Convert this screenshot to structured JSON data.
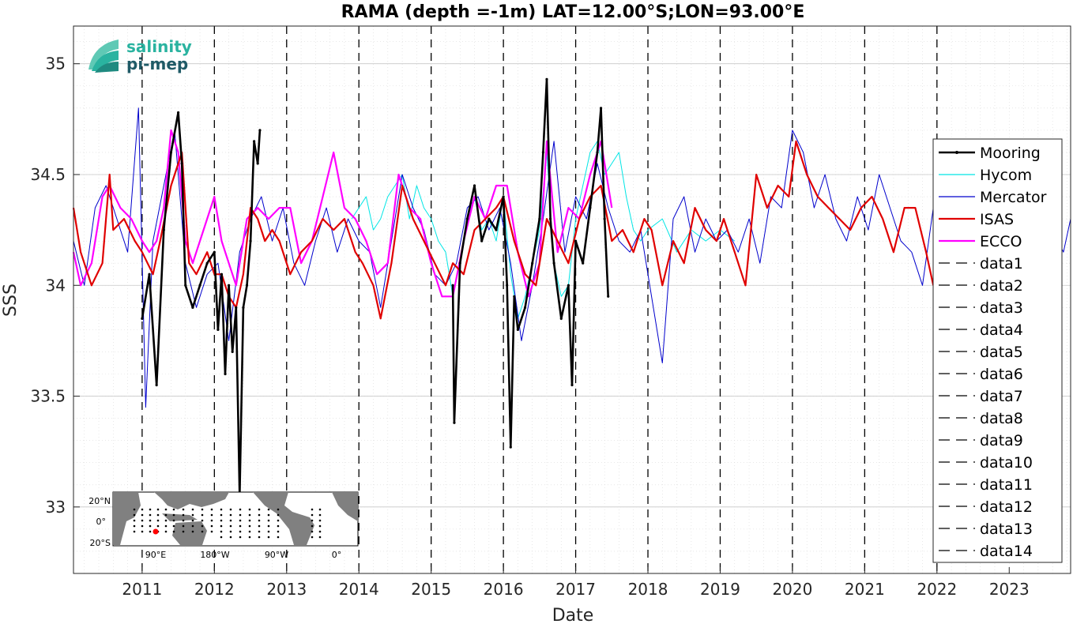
{
  "chart_data": {
    "type": "line",
    "title": "RAMA (depth =-1m) LAT=12.00°S;LON=93.00°E",
    "xlabel": "Date",
    "ylabel": "SSS",
    "xlim": [
      2010.05,
      2023.85
    ],
    "ylim": [
      32.7,
      35.17
    ],
    "yticks": [
      33,
      33.5,
      34,
      34.5,
      35
    ],
    "xticks": [
      2011,
      2012,
      2013,
      2014,
      2015,
      2016,
      2017,
      2018,
      2019,
      2020,
      2021,
      2022,
      2023
    ],
    "grid": true,
    "legend_position": "right",
    "year_lines": [
      2011,
      2012,
      2013,
      2014,
      2015,
      2016,
      2017,
      2018,
      2019,
      2020,
      2021,
      2022
    ],
    "series": [
      {
        "name": "Mooring",
        "color": "#000000",
        "style": "solid-dots",
        "segments": [
          [
            [
              2011.0,
              33.85
            ],
            [
              2011.1,
              34.05
            ],
            [
              2011.2,
              33.55
            ],
            [
              2011.3,
              34.25
            ],
            [
              2011.4,
              34.6
            ],
            [
              2011.5,
              34.78
            ],
            [
              2011.55,
              34.55
            ],
            [
              2011.6,
              34.0
            ],
            [
              2011.7,
              33.9
            ],
            [
              2011.8,
              34.0
            ],
            [
              2011.9,
              34.1
            ],
            [
              2012.0,
              34.15
            ],
            [
              2012.05,
              33.8
            ],
            [
              2012.1,
              34.05
            ],
            [
              2012.15,
              33.6
            ],
            [
              2012.2,
              34.0
            ],
            [
              2012.25,
              33.7
            ],
            [
              2012.3,
              33.9
            ],
            [
              2012.35,
              33.05
            ],
            [
              2012.4,
              33.9
            ],
            [
              2012.45,
              34.0
            ],
            [
              2012.5,
              34.2
            ],
            [
              2012.55,
              34.65
            ],
            [
              2012.6,
              34.55
            ],
            [
              2012.63,
              34.7
            ]
          ],
          [
            [
              2015.3,
              34.0
            ],
            [
              2015.32,
              33.38
            ],
            [
              2015.4,
              34.1
            ],
            [
              2015.5,
              34.3
            ],
            [
              2015.6,
              34.45
            ],
            [
              2015.7,
              34.2
            ],
            [
              2015.8,
              34.3
            ],
            [
              2015.9,
              34.25
            ],
            [
              2016.0,
              34.4
            ],
            [
              2016.05,
              34.0
            ],
            [
              2016.1,
              33.27
            ],
            [
              2016.15,
              33.95
            ],
            [
              2016.2,
              33.8
            ],
            [
              2016.3,
              33.9
            ],
            [
              2016.4,
              34.1
            ],
            [
              2016.5,
              34.3
            ],
            [
              2016.55,
              34.6
            ],
            [
              2016.6,
              34.93
            ],
            [
              2016.65,
              34.3
            ],
            [
              2016.7,
              34.1
            ],
            [
              2016.8,
              33.85
            ],
            [
              2016.9,
              34.0
            ],
            [
              2016.95,
              33.55
            ],
            [
              2017.0,
              34.2
            ],
            [
              2017.1,
              34.1
            ],
            [
              2017.2,
              34.35
            ],
            [
              2017.3,
              34.6
            ],
            [
              2017.35,
              34.8
            ],
            [
              2017.4,
              34.3
            ],
            [
              2017.45,
              33.95
            ]
          ]
        ]
      },
      {
        "name": "Hycom",
        "color": "#00e5e5",
        "style": "thin",
        "x": [
          2013.9,
          2014.0,
          2014.1,
          2014.2,
          2014.3,
          2014.4,
          2014.5,
          2014.6,
          2014.7,
          2014.8,
          2014.9,
          2015.0,
          2015.1,
          2015.2,
          2015.3,
          2015.4,
          2015.5,
          2015.6,
          2015.7,
          2015.8,
          2015.9,
          2016.0,
          2016.1,
          2016.2,
          2016.3,
          2016.4,
          2016.5,
          2016.6,
          2016.7,
          2016.8,
          2016.9,
          2017.0,
          2017.1,
          2017.2,
          2017.3,
          2017.4,
          2017.5,
          2017.6,
          2017.7,
          2017.8,
          2017.9,
          2018.0,
          2018.2,
          2018.4,
          2018.6,
          2018.8,
          2019.0,
          2019.2
        ],
        "y": [
          34.3,
          34.35,
          34.4,
          34.25,
          34.3,
          34.4,
          34.45,
          34.5,
          34.3,
          34.45,
          34.35,
          34.3,
          34.2,
          34.15,
          33.95,
          34.1,
          34.3,
          34.4,
          34.25,
          34.3,
          34.2,
          34.4,
          34.05,
          33.85,
          33.95,
          34.1,
          34.25,
          34.6,
          34.1,
          33.95,
          34.0,
          34.3,
          34.45,
          34.6,
          34.65,
          34.5,
          34.55,
          34.6,
          34.4,
          34.25,
          34.2,
          34.25,
          34.3,
          34.15,
          34.25,
          34.2,
          34.25,
          34.2
        ]
      },
      {
        "name": "Mercator",
        "color": "#0000cc",
        "style": "thin",
        "x": [
          2010.05,
          2010.2,
          2010.35,
          2010.5,
          2010.65,
          2010.8,
          2010.95,
          2011.05,
          2011.15,
          2011.3,
          2011.45,
          2011.6,
          2011.75,
          2011.9,
          2012.05,
          2012.2,
          2012.35,
          2012.5,
          2012.65,
          2012.8,
          2012.95,
          2013.1,
          2013.25,
          2013.4,
          2013.55,
          2013.7,
          2013.85,
          2014.0,
          2014.15,
          2014.3,
          2014.45,
          2014.6,
          2014.75,
          2014.9,
          2015.05,
          2015.2,
          2015.35,
          2015.5,
          2015.65,
          2015.8,
          2015.95,
          2016.1,
          2016.25,
          2016.4,
          2016.55,
          2016.7,
          2016.85,
          2017.0,
          2017.15,
          2017.3,
          2017.45,
          2017.6,
          2017.75,
          2017.9,
          2018.05,
          2018.2,
          2018.35,
          2018.5,
          2018.65,
          2018.8,
          2018.95,
          2019.1,
          2019.25,
          2019.4,
          2019.55,
          2019.7,
          2019.85,
          2020.0,
          2020.15,
          2020.3,
          2020.45,
          2020.6,
          2020.75,
          2020.9,
          2021.05,
          2021.2,
          2021.35,
          2021.5,
          2021.65,
          2021.8,
          2021.95,
          2022.1,
          2022.25,
          2022.4,
          2022.55,
          2022.7,
          2022.85,
          2023.0,
          2023.15,
          2023.3,
          2023.45,
          2023.6,
          2023.75,
          2023.85
        ],
        "y": [
          34.2,
          34.0,
          34.35,
          34.45,
          34.3,
          34.15,
          34.8,
          33.45,
          34.2,
          34.45,
          34.7,
          34.1,
          33.9,
          34.05,
          34.1,
          33.75,
          34.15,
          34.3,
          34.4,
          34.2,
          34.35,
          34.1,
          34.0,
          34.2,
          34.35,
          34.15,
          34.3,
          34.2,
          34.15,
          33.9,
          34.2,
          34.5,
          34.35,
          34.25,
          34.05,
          34.0,
          34.1,
          34.35,
          34.4,
          34.25,
          34.35,
          34.1,
          33.75,
          34.0,
          34.3,
          34.65,
          34.15,
          34.4,
          34.3,
          34.55,
          34.35,
          34.2,
          34.15,
          34.25,
          33.95,
          33.65,
          34.3,
          34.4,
          34.15,
          34.3,
          34.2,
          34.25,
          34.15,
          34.3,
          34.1,
          34.4,
          34.35,
          34.7,
          34.6,
          34.35,
          34.5,
          34.3,
          34.2,
          34.4,
          34.25,
          34.5,
          34.35,
          34.2,
          34.15,
          34.0,
          34.35,
          34.25,
          34.1,
          34.05,
          33.9,
          34.1,
          34.2,
          34.3,
          34.15,
          34.45,
          34.3,
          34.25,
          34.15,
          34.3
        ]
      },
      {
        "name": "ISAS",
        "color": "#e00000",
        "style": "thick",
        "x": [
          2010.05,
          2010.15,
          2010.3,
          2010.45,
          2010.55,
          2010.6,
          2010.75,
          2010.9,
          2011.0,
          2011.15,
          2011.25,
          2011.4,
          2011.55,
          2011.65,
          2011.75,
          2011.9,
          2012.0,
          2012.1,
          2012.2,
          2012.3,
          2012.4,
          2012.5,
          2012.6,
          2012.7,
          2012.8,
          2012.9,
          2013.05,
          2013.2,
          2013.35,
          2013.5,
          2013.65,
          2013.8,
          2013.95,
          2014.05,
          2014.2,
          2014.3,
          2014.45,
          2014.6,
          2014.75,
          2014.9,
          2015.05,
          2015.2,
          2015.3,
          2015.45,
          2015.6,
          2015.75,
          2015.9,
          2016.0,
          2016.15,
          2016.3,
          2016.45,
          2016.6,
          2016.75,
          2016.9,
          2017.05,
          2017.2,
          2017.35,
          2017.5,
          2017.65,
          2017.8,
          2017.95,
          2018.05,
          2018.2,
          2018.35,
          2018.5,
          2018.65,
          2018.8,
          2018.95,
          2019.05,
          2019.2,
          2019.35,
          2019.5,
          2019.65,
          2019.8,
          2019.95,
          2020.05,
          2020.2,
          2020.35,
          2020.5,
          2020.65,
          2020.8,
          2020.95,
          2021.1,
          2021.25,
          2021.4,
          2021.55,
          2021.7,
          2021.85,
          2021.95
        ],
        "y": [
          34.35,
          34.15,
          34.0,
          34.1,
          34.5,
          34.25,
          34.3,
          34.2,
          34.15,
          34.05,
          34.2,
          34.45,
          34.6,
          34.1,
          34.05,
          34.15,
          34.05,
          34.05,
          33.95,
          33.9,
          34.05,
          34.35,
          34.3,
          34.2,
          34.25,
          34.2,
          34.05,
          34.15,
          34.2,
          34.3,
          34.25,
          34.3,
          34.15,
          34.1,
          34.0,
          33.85,
          34.1,
          34.45,
          34.3,
          34.2,
          34.1,
          34.0,
          34.1,
          34.05,
          34.25,
          34.3,
          34.35,
          34.4,
          34.2,
          34.05,
          34.0,
          34.3,
          34.2,
          34.1,
          34.3,
          34.4,
          34.45,
          34.2,
          34.25,
          34.15,
          34.3,
          34.25,
          34.0,
          34.2,
          34.1,
          34.35,
          34.25,
          34.2,
          34.3,
          34.15,
          34.0,
          34.5,
          34.35,
          34.45,
          34.4,
          34.65,
          34.5,
          34.4,
          34.35,
          34.3,
          34.25,
          34.35,
          34.4,
          34.3,
          34.15,
          34.35,
          34.35,
          34.15,
          34.0
        ]
      },
      {
        "name": "ECCO",
        "color": "#ff00ff",
        "style": "thick",
        "x": [
          2010.05,
          2010.15,
          2010.3,
          2010.45,
          2010.55,
          2010.7,
          2010.85,
          2011.0,
          2011.1,
          2011.2,
          2011.3,
          2011.4,
          2011.5,
          2011.6,
          2011.7,
          2011.85,
          2012.0,
          2012.1,
          2012.2,
          2012.3,
          2012.45,
          2012.6,
          2012.75,
          2012.9,
          2013.05,
          2013.2,
          2013.35,
          2013.5,
          2013.65,
          2013.8,
          2013.95,
          2014.1,
          2014.25,
          2014.4,
          2014.55,
          2014.7,
          2014.85,
          2015.0,
          2015.15,
          2015.3,
          2015.45,
          2015.6,
          2015.75,
          2015.9,
          2016.05,
          2016.2,
          2016.35,
          2016.5,
          2016.6,
          2016.75,
          2016.9,
          2017.05,
          2017.2,
          2017.35,
          2017.5
        ],
        "y": [
          34.15,
          34.0,
          34.1,
          34.4,
          34.45,
          34.35,
          34.3,
          34.2,
          34.15,
          34.2,
          34.35,
          34.7,
          34.6,
          34.2,
          34.1,
          34.25,
          34.4,
          34.2,
          34.1,
          34.0,
          34.3,
          34.35,
          34.3,
          34.35,
          34.35,
          34.1,
          34.2,
          34.4,
          34.6,
          34.35,
          34.3,
          34.2,
          34.05,
          34.1,
          34.5,
          34.35,
          34.3,
          34.1,
          33.95,
          33.95,
          34.2,
          34.4,
          34.3,
          34.45,
          34.45,
          34.15,
          33.95,
          34.1,
          34.65,
          34.15,
          34.35,
          34.3,
          34.5,
          34.65,
          34.35
        ]
      }
    ],
    "legend": [
      "Mooring",
      "Hycom",
      "Mercator",
      "ISAS",
      "ECCO",
      "data1",
      "data2",
      "data3",
      "data4",
      "data5",
      "data6",
      "data7",
      "data8",
      "data9",
      "data10",
      "data11",
      "data12",
      "data13",
      "data14"
    ],
    "inset_map": {
      "lat_labels": [
        "20°N",
        "0°",
        "20°S"
      ],
      "lon_labels": [
        "90°E",
        "180°W",
        "90°W",
        "0°"
      ],
      "marker_color": "#ff0000"
    },
    "logo": {
      "line1": "salinity",
      "line2": "pi-mep"
    }
  }
}
